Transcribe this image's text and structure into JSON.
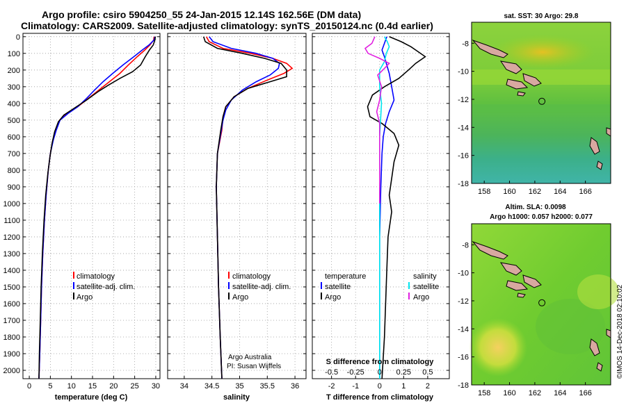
{
  "title": {
    "line1": "Argo profile: csiro 5904250_55 24-Jan-2015 12.14S 162.56E (DM data)",
    "line2": "Climatology: CARS2009. Satellite-adjusted climatology: synTS_20150124.nc (0.4d earlier)"
  },
  "depth_ticks": [
    0,
    100,
    200,
    300,
    400,
    500,
    600,
    700,
    800,
    900,
    1000,
    1100,
    1200,
    1300,
    1400,
    1500,
    1600,
    1700,
    1800,
    1900,
    2000
  ],
  "watermark": "©IMOS 14-Dec-2018 02:10:02",
  "colors": {
    "climatology": "#ff0000",
    "satellite": "#0000ff",
    "argo": "#000000",
    "s_sat": "#00e5ee",
    "s_argo": "#e020e0"
  },
  "chart_data": [
    {
      "type": "line",
      "title": "temperature profile",
      "xlabel": "temperature (deg C)",
      "ylabel": "depth",
      "xlim": [
        -1.5,
        31
      ],
      "ylim": [
        2050,
        -20
      ],
      "xticks": [
        0,
        5,
        10,
        15,
        20,
        25,
        30
      ],
      "legend": [
        "climatology",
        "satellite-adj. clim.",
        "Argo"
      ],
      "series": [
        {
          "name": "climatology",
          "color": "#ff0000",
          "points": [
            [
              29.6,
              0
            ],
            [
              29.5,
              20
            ],
            [
              28.6,
              50
            ],
            [
              27.4,
              80
            ],
            [
              25.6,
              120
            ],
            [
              23.5,
              170
            ],
            [
              21.5,
              220
            ],
            [
              19.0,
              270
            ],
            [
              16.5,
              320
            ],
            [
              14.0,
              370
            ],
            [
              11.5,
              420
            ],
            [
              9.0,
              460
            ],
            [
              7.2,
              500
            ],
            [
              6.3,
              560
            ],
            [
              5.6,
              620
            ],
            [
              5.0,
              700
            ],
            [
              4.5,
              800
            ],
            [
              4.0,
              950
            ],
            [
              3.6,
              1100
            ],
            [
              3.2,
              1300
            ],
            [
              2.9,
              1500
            ],
            [
              2.7,
              1700
            ],
            [
              2.5,
              1900
            ],
            [
              2.3,
              2050
            ]
          ]
        },
        {
          "name": "satellite-adj. clim.",
          "color": "#0000ff",
          "points": [
            [
              29.8,
              0
            ],
            [
              29.6,
              20
            ],
            [
              28.4,
              50
            ],
            [
              26.8,
              80
            ],
            [
              24.8,
              120
            ],
            [
              22.2,
              170
            ],
            [
              19.8,
              220
            ],
            [
              17.5,
              270
            ],
            [
              15.5,
              320
            ],
            [
              13.6,
              370
            ],
            [
              11.5,
              420
            ],
            [
              9.2,
              460
            ],
            [
              7.3,
              500
            ],
            [
              6.4,
              560
            ],
            [
              5.7,
              620
            ],
            [
              5.0,
              700
            ],
            [
              4.5,
              800
            ],
            [
              4.0,
              950
            ],
            [
              3.6,
              1100
            ],
            [
              3.2,
              1300
            ],
            [
              2.9,
              1500
            ],
            [
              2.7,
              1700
            ],
            [
              2.5,
              1900
            ],
            [
              2.3,
              2050
            ]
          ]
        },
        {
          "name": "Argo",
          "color": "#000000",
          "points": [
            [
              29.9,
              0
            ],
            [
              29.8,
              20
            ],
            [
              29.4,
              50
            ],
            [
              28.5,
              80
            ],
            [
              27.5,
              120
            ],
            [
              26.4,
              170
            ],
            [
              24.5,
              210
            ],
            [
              21.5,
              250
            ],
            [
              18.8,
              290
            ],
            [
              16.3,
              330
            ],
            [
              13.6,
              380
            ],
            [
              10.6,
              430
            ],
            [
              8.2,
              470
            ],
            [
              6.9,
              510
            ],
            [
              6.0,
              570
            ],
            [
              5.4,
              640
            ],
            [
              4.9,
              720
            ],
            [
              4.4,
              820
            ],
            [
              3.9,
              950
            ],
            [
              3.5,
              1100
            ],
            [
              3.1,
              1300
            ],
            [
              2.8,
              1500
            ],
            [
              2.6,
              1700
            ],
            [
              2.4,
              1900
            ],
            [
              2.3,
              2050
            ]
          ]
        }
      ]
    },
    {
      "type": "line",
      "title": "salinity profile",
      "xlabel": "salinity",
      "ylabel": "depth",
      "xlim": [
        33.7,
        36.2
      ],
      "ylim": [
        2050,
        -20
      ],
      "xticks": [
        34,
        34.5,
        35,
        35.5,
        36
      ],
      "xticklabels": [
        "34",
        "34.5",
        "35",
        "35.5",
        "36"
      ],
      "legend": [
        "climatology",
        "satellite-adj. clim.",
        "Argo"
      ],
      "credit": [
        "Argo Australia",
        "PI: Susan Wijffels"
      ],
      "series": [
        {
          "name": "climatology",
          "color": "#ff0000",
          "points": [
            [
              34.4,
              0
            ],
            [
              34.45,
              30
            ],
            [
              34.7,
              70
            ],
            [
              35.2,
              100
            ],
            [
              35.6,
              130
            ],
            [
              35.85,
              160
            ],
            [
              35.95,
              190
            ],
            [
              35.8,
              220
            ],
            [
              35.5,
              260
            ],
            [
              35.15,
              310
            ],
            [
              34.9,
              360
            ],
            [
              34.75,
              420
            ],
            [
              34.7,
              480
            ],
            [
              34.68,
              560
            ],
            [
              34.6,
              700
            ],
            [
              34.58,
              900
            ],
            [
              34.6,
              1200
            ],
            [
              34.62,
              1500
            ],
            [
              34.65,
              1800
            ],
            [
              34.68,
              2050
            ]
          ]
        },
        {
          "name": "satellite-adj. clim.",
          "color": "#0000ff",
          "points": [
            [
              34.45,
              0
            ],
            [
              34.52,
              30
            ],
            [
              34.85,
              70
            ],
            [
              35.3,
              100
            ],
            [
              35.6,
              130
            ],
            [
              35.72,
              160
            ],
            [
              35.7,
              190
            ],
            [
              35.55,
              230
            ],
            [
              35.3,
              270
            ],
            [
              35.05,
              320
            ],
            [
              34.85,
              380
            ],
            [
              34.75,
              440
            ],
            [
              34.7,
              500
            ],
            [
              34.66,
              580
            ],
            [
              34.6,
              700
            ],
            [
              34.58,
              900
            ],
            [
              34.6,
              1200
            ],
            [
              34.62,
              1500
            ],
            [
              34.65,
              1800
            ],
            [
              34.68,
              2050
            ]
          ]
        },
        {
          "name": "Argo",
          "color": "#000000",
          "points": [
            [
              34.35,
              0
            ],
            [
              34.38,
              30
            ],
            [
              34.6,
              70
            ],
            [
              35.05,
              100
            ],
            [
              35.45,
              130
            ],
            [
              35.75,
              160
            ],
            [
              35.85,
              200
            ],
            [
              35.85,
              240
            ],
            [
              35.55,
              270
            ],
            [
              35.15,
              310
            ],
            [
              34.9,
              360
            ],
            [
              34.75,
              420
            ],
            [
              34.7,
              480
            ],
            [
              34.66,
              560
            ],
            [
              34.6,
              700
            ],
            [
              34.58,
              900
            ],
            [
              34.6,
              1200
            ],
            [
              34.62,
              1500
            ],
            [
              34.65,
              1800
            ],
            [
              34.68,
              2050
            ]
          ]
        }
      ]
    },
    {
      "type": "line",
      "title": "difference from climatology",
      "xlabel": "T difference from climatology",
      "x2label": "S difference from climatology",
      "xlim": [
        -2.8,
        2.9
      ],
      "x2lim": [
        -0.7,
        0.725
      ],
      "ylim": [
        2050,
        -20
      ],
      "xticks": [
        -2,
        -1,
        0,
        1,
        2
      ],
      "x2ticks": [
        -0.5,
        -0.25,
        0,
        0.25,
        0.5
      ],
      "x2ticklabels": [
        "-0.5",
        "-0.25",
        "0",
        "0.25",
        "0.5"
      ],
      "legend_left_title": "temperature",
      "legend_right_title": "salinity",
      "legend_left": [
        "satellite",
        "Argo"
      ],
      "legend_right": [
        "satellite",
        "Argo"
      ],
      "series": [
        {
          "name": "T satellite",
          "axis": "T",
          "color": "#0000ff",
          "points": [
            [
              0.3,
              0
            ],
            [
              0.2,
              40
            ],
            [
              0.1,
              80
            ],
            [
              0.2,
              120
            ],
            [
              0.3,
              170
            ],
            [
              0.4,
              220
            ],
            [
              0.5,
              300
            ],
            [
              0.6,
              380
            ],
            [
              0.4,
              450
            ],
            [
              0.25,
              520
            ],
            [
              0.15,
              600
            ],
            [
              0.1,
              700
            ],
            [
              0.05,
              900
            ],
            [
              0.0,
              1200
            ],
            [
              0.0,
              1600
            ],
            [
              0.0,
              2050
            ]
          ]
        },
        {
          "name": "T Argo",
          "axis": "T",
          "color": "#000000",
          "points": [
            [
              0.4,
              0
            ],
            [
              0.9,
              30
            ],
            [
              1.3,
              60
            ],
            [
              1.6,
              90
            ],
            [
              1.9,
              120
            ],
            [
              1.5,
              160
            ],
            [
              1.2,
              200
            ],
            [
              0.8,
              250
            ],
            [
              0.2,
              300
            ],
            [
              -0.3,
              350
            ],
            [
              -0.5,
              420
            ],
            [
              -0.4,
              480
            ],
            [
              0.1,
              520
            ],
            [
              0.6,
              580
            ],
            [
              0.8,
              650
            ],
            [
              0.6,
              750
            ],
            [
              0.5,
              850
            ],
            [
              0.4,
              950
            ],
            [
              0.5,
              1050
            ],
            [
              0.35,
              1200
            ],
            [
              0.3,
              1400
            ],
            [
              0.25,
              1600
            ],
            [
              0.2,
              1800
            ],
            [
              0.1,
              2050
            ]
          ]
        },
        {
          "name": "S satellite",
          "axis": "S",
          "color": "#00e5ee",
          "points": [
            [
              0.05,
              0
            ],
            [
              0.08,
              30
            ],
            [
              0.1,
              60
            ],
            [
              0.07,
              100
            ],
            [
              0.05,
              150
            ],
            [
              0.0,
              200
            ],
            [
              0.0,
              300
            ],
            [
              0.02,
              400
            ],
            [
              0.0,
              600
            ],
            [
              0.0,
              900
            ],
            [
              0.0,
              1200
            ],
            [
              0.0,
              1600
            ],
            [
              0.0,
              2050
            ]
          ]
        },
        {
          "name": "S Argo",
          "axis": "S",
          "color": "#e020e0",
          "points": [
            [
              -0.05,
              0
            ],
            [
              -0.08,
              40
            ],
            [
              -0.15,
              70
            ],
            [
              -0.12,
              100
            ],
            [
              0.0,
              130
            ],
            [
              0.1,
              160
            ],
            [
              0.05,
              190
            ],
            [
              -0.02,
              230
            ],
            [
              0.02,
              300
            ],
            [
              0.0,
              380
            ],
            [
              -0.03,
              450
            ],
            [
              0.0,
              520
            ],
            [
              0.0,
              700
            ],
            [
              0.0,
              900
            ],
            [
              0.0,
              1000
            ]
          ]
        }
      ]
    },
    {
      "type": "heatmap",
      "title": "sat. SST: 30 Argo: 29.8",
      "xlim": [
        157,
        168
      ],
      "ylim": [
        -18,
        -6.5
      ],
      "xticks": [
        158,
        160,
        162,
        164,
        166
      ],
      "yticks": [
        -8,
        -10,
        -12,
        -14,
        -16,
        -18
      ],
      "marker": {
        "lon": 162.56,
        "lat": -12.14
      }
    },
    {
      "type": "heatmap",
      "title": "Altim. SLA: 0.0098",
      "subtitle": "Argo h1000: 0.057 h2000: 0.077",
      "xlim": [
        157,
        168
      ],
      "ylim": [
        -18,
        -6.5
      ],
      "xticks": [
        158,
        160,
        162,
        164,
        166
      ],
      "yticks": [
        -8,
        -10,
        -12,
        -14,
        -16,
        -18
      ],
      "marker": {
        "lon": 162.56,
        "lat": -12.14
      }
    }
  ]
}
